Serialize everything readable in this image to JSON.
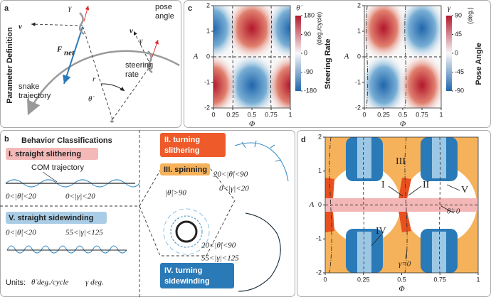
{
  "panel_a": {
    "label": "a",
    "side_title": "Parameter Definition",
    "v_left": "v",
    "gamma_left": "γ",
    "pose_angle": [
      "pose",
      "angle"
    ],
    "v_right": "v",
    "gamma_right": "γ",
    "force": {
      "symbol": "F",
      "subscript": "net"
    },
    "steering_rate": [
      "steering",
      "rate"
    ],
    "radius": "r",
    "theta_dot": "θ̇",
    "trajectory": [
      "snake",
      "trajectory"
    ]
  },
  "panel_c": {
    "label": "c",
    "plots": [
      {
        "y_label": "A",
        "yticks": [
          2,
          1,
          0,
          -1,
          -2
        ],
        "xticks": [
          0,
          0.25,
          0.5,
          0.75,
          1
        ],
        "x_label": "Φ",
        "colorbar_title": "θ̇",
        "colorbar_ticks": [
          180,
          90,
          0,
          -90,
          -180
        ],
        "colorbar_unit": "(deg./cycle)",
        "side_title": "Steering Rate"
      },
      {
        "y_label": "A",
        "yticks": [
          2,
          1,
          0,
          -1,
          -2
        ],
        "xticks": [
          0,
          0.25,
          0.5,
          0.75,
          1
        ],
        "x_label": "Φ",
        "colorbar_title": "γ",
        "colorbar_ticks": [
          90,
          45,
          0,
          -45,
          -90
        ],
        "colorbar_unit": "(deg.)",
        "side_title": "Pose Angle"
      }
    ]
  },
  "panel_b": {
    "label": "b",
    "title": "Behavior Classifications",
    "straight_slithering": {
      "name": "I. straight slithering",
      "annotation": "COM trajectory",
      "conditions": [
        "0<|θ̇|<20",
        "0<|γ|<20"
      ]
    },
    "straight_sidewinding": {
      "name": "V. straight sidewinding",
      "conditions": [
        "0<|θ̇|<20",
        "55<|γ|<125"
      ]
    },
    "turning_slithering": {
      "name": [
        "II. turning",
        "slithering"
      ],
      "conditions": [
        "20<|θ̇|<90",
        "0<|γ|<20"
      ]
    },
    "spinning": {
      "name": "III. spinning",
      "conditions": [
        "|θ̇|>90"
      ]
    },
    "turning_sidewinding": {
      "name": [
        "IV. turning",
        "sidewinding"
      ],
      "conditions": [
        "20<|θ̇|<90",
        "55<|γ|<125"
      ]
    },
    "units": {
      "label": "Units:",
      "theta": "θ̇ deg./cycle",
      "gamma": "γ deg."
    }
  },
  "panel_d": {
    "label": "d",
    "y_label": "A",
    "yticks": [
      2,
      1,
      0,
      -1,
      -2
    ],
    "xticks": [
      0,
      0.25,
      0.5,
      0.75,
      1
    ],
    "x_label": "Φ",
    "regions": [
      "III",
      "I",
      "II",
      "V",
      "IV"
    ],
    "theta_zero": "θ̇=0",
    "gamma_zero": "γ=0"
  }
}
